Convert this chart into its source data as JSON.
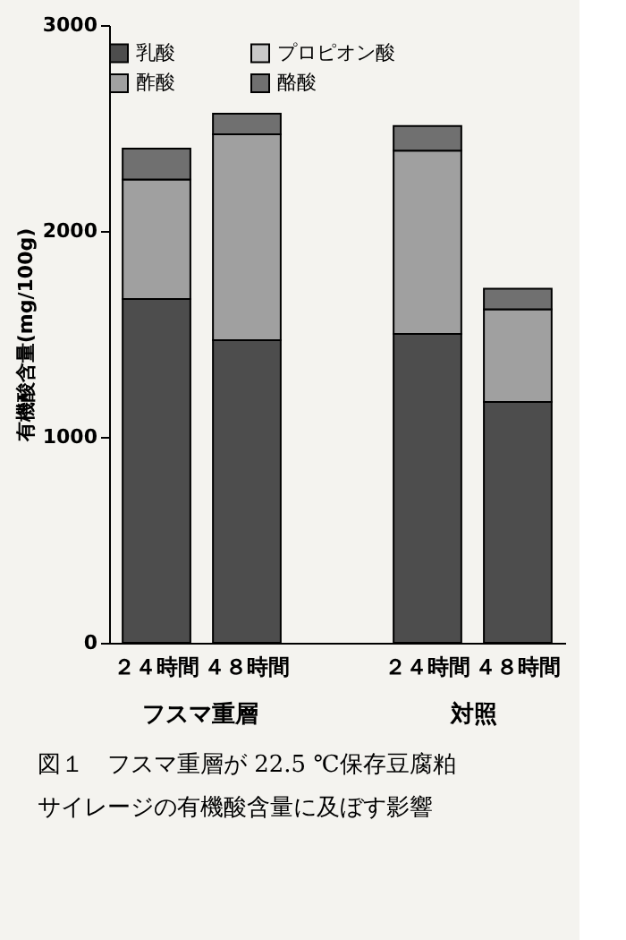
{
  "chart_data": {
    "type": "bar",
    "stacked": true,
    "ylabel": "有機酸含量(mg/100g)",
    "categories": [
      "２４時間",
      "４８時間",
      null,
      "２４時間",
      "４８時間"
    ],
    "series": [
      {
        "name": "乳酸",
        "color": "#4d4d4d",
        "values": [
          1670,
          1470,
          null,
          1500,
          1170
        ]
      },
      {
        "name": "プロピオン酸",
        "color": "#c8c8c8",
        "values": [
          null,
          null,
          null,
          null,
          null
        ]
      },
      {
        "name": "酢酸",
        "color": "#a0a0a0",
        "values": [
          580,
          1000,
          null,
          890,
          450
        ]
      },
      {
        "name": "酪酸",
        "color": "#707070",
        "values": [
          150,
          100,
          null,
          120,
          100
        ]
      }
    ],
    "ylim": [
      0,
      3000
    ],
    "yticks": [
      0,
      1000,
      2000,
      3000
    ],
    "grid": false,
    "legend": "top",
    "annotations": [
      "フスマ重層",
      "対照",
      "図１　フスマ重層が 22.5 ℃保存豆腐粕",
      "サイレージの有機酸含量に及ぼす影響"
    ]
  }
}
